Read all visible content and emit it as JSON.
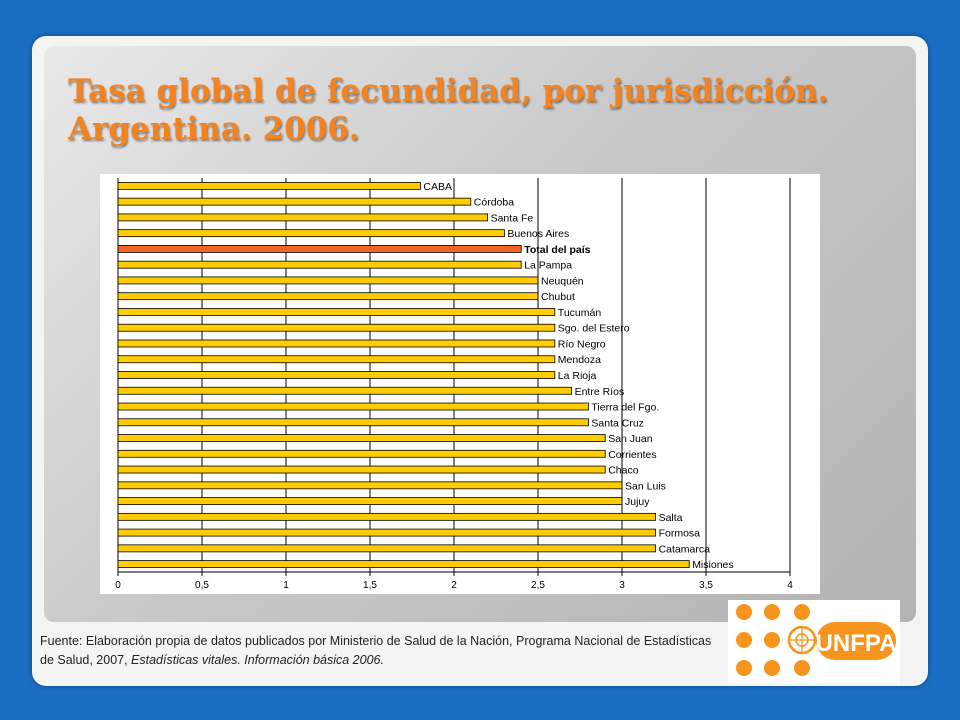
{
  "slide": {
    "title_line1": "Tasa global de fecundidad, por jurisdicción.",
    "title_line2": "Argentina. 2006.",
    "source_prefix": "Fuente: Elaboración propia de datos  publicados por Ministerio de Salud de la Nación, Programa Nacional de Estadísticas de Salud, 2007, ",
    "source_italic": "Estadísticas vitales. Información básica 2006.",
    "logo_text": "UNFPA",
    "logo_icon": "un-emblem-icon"
  },
  "colors": {
    "background": "#1a6fc4",
    "title": "#f4821f",
    "bar": "#ffcc00",
    "bar_highlight": "#f26522",
    "bar_outline": "#000000",
    "logo": "#f7941d"
  },
  "chart_data": {
    "type": "bar",
    "orientation": "horizontal",
    "title": "",
    "xlabel": "",
    "ylabel": "",
    "xlim": [
      0,
      4
    ],
    "x_ticks": [
      "0",
      "0,5",
      "1",
      "1,5",
      "2",
      "2,5",
      "3",
      "3,5",
      "4"
    ],
    "grid": "vertical",
    "highlight": "Total del país",
    "categories": [
      "CABA",
      "Córdoba",
      "Santa Fe",
      "Buenos Aires",
      "Total del país",
      "La Pampa",
      "Neuquén",
      "Chubut",
      "Tucumán",
      "Sgo. del Estero",
      "Río Negro",
      "Mendoza",
      "La Rioja",
      "Entre Ríos",
      "Tierra del Fgo.",
      "Santa Cruz",
      "San Juan",
      "Corrientes",
      "Chaco",
      "San Luis",
      "Jujuy",
      "Salta",
      "Formosa",
      "Catamarca",
      "Misiones"
    ],
    "values": [
      1.8,
      2.1,
      2.2,
      2.3,
      2.4,
      2.4,
      2.5,
      2.5,
      2.6,
      2.6,
      2.6,
      2.6,
      2.6,
      2.7,
      2.8,
      2.8,
      2.9,
      2.9,
      2.9,
      3.0,
      3.0,
      3.2,
      3.2,
      3.2,
      3.4
    ]
  }
}
